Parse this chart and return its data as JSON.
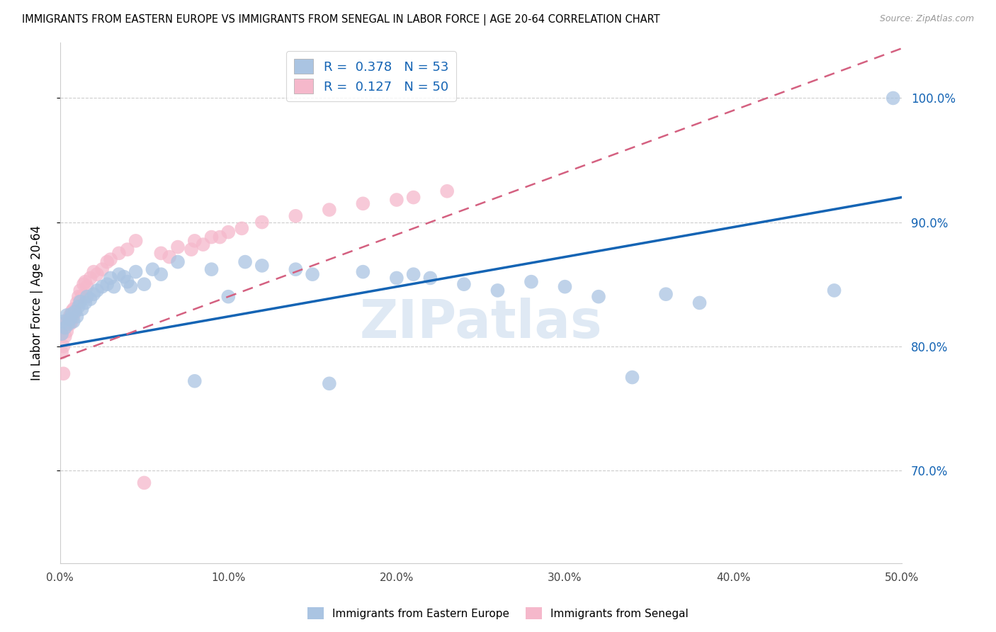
{
  "title": "IMMIGRANTS FROM EASTERN EUROPE VS IMMIGRANTS FROM SENEGAL IN LABOR FORCE | AGE 20-64 CORRELATION CHART",
  "source": "Source: ZipAtlas.com",
  "ylabel": "In Labor Force | Age 20-64",
  "legend_labels": [
    "Immigrants from Eastern Europe",
    "Immigrants from Senegal"
  ],
  "R_eastern": 0.378,
  "N_eastern": 53,
  "R_senegal": 0.127,
  "N_senegal": 50,
  "color_eastern": "#aac4e2",
  "color_senegal": "#f5b8cb",
  "line_color_eastern": "#1464b4",
  "line_color_senegal": "#d46080",
  "xlim": [
    0.0,
    0.5
  ],
  "ylim": [
    0.625,
    1.045
  ],
  "yticks": [
    0.7,
    0.8,
    0.9,
    1.0
  ],
  "xticks": [
    0.0,
    0.1,
    0.2,
    0.3,
    0.4,
    0.5
  ],
  "watermark": "ZIPatlas",
  "eastern_x": [
    0.001,
    0.002,
    0.003,
    0.004,
    0.005,
    0.006,
    0.007,
    0.008,
    0.009,
    0.01,
    0.011,
    0.012,
    0.013,
    0.015,
    0.016,
    0.018,
    0.02,
    0.022,
    0.025,
    0.028,
    0.03,
    0.032,
    0.035,
    0.038,
    0.04,
    0.042,
    0.045,
    0.05,
    0.055,
    0.06,
    0.07,
    0.08,
    0.09,
    0.1,
    0.11,
    0.12,
    0.14,
    0.15,
    0.16,
    0.18,
    0.2,
    0.21,
    0.22,
    0.24,
    0.26,
    0.28,
    0.3,
    0.32,
    0.34,
    0.36,
    0.38,
    0.46,
    0.495
  ],
  "eastern_y": [
    0.81,
    0.82,
    0.815,
    0.825,
    0.818,
    0.822,
    0.826,
    0.82,
    0.828,
    0.824,
    0.832,
    0.836,
    0.83,
    0.835,
    0.84,
    0.838,
    0.842,
    0.845,
    0.848,
    0.85,
    0.855,
    0.848,
    0.858,
    0.856,
    0.852,
    0.848,
    0.86,
    0.85,
    0.862,
    0.858,
    0.868,
    0.772,
    0.862,
    0.84,
    0.868,
    0.865,
    0.862,
    0.858,
    0.77,
    0.86,
    0.855,
    0.858,
    0.855,
    0.85,
    0.845,
    0.852,
    0.848,
    0.84,
    0.775,
    0.842,
    0.835,
    0.845,
    1.0
  ],
  "senegal_x": [
    0.001,
    0.001,
    0.002,
    0.002,
    0.003,
    0.003,
    0.004,
    0.004,
    0.005,
    0.006,
    0.006,
    0.007,
    0.007,
    0.008,
    0.008,
    0.009,
    0.01,
    0.011,
    0.012,
    0.013,
    0.014,
    0.015,
    0.016,
    0.018,
    0.02,
    0.022,
    0.025,
    0.028,
    0.03,
    0.035,
    0.04,
    0.045,
    0.05,
    0.06,
    0.07,
    0.08,
    0.09,
    0.1,
    0.12,
    0.14,
    0.16,
    0.18,
    0.2,
    0.21,
    0.23,
    0.108,
    0.095,
    0.085,
    0.078,
    0.065
  ],
  "senegal_y": [
    0.795,
    0.81,
    0.778,
    0.8,
    0.815,
    0.808,
    0.812,
    0.82,
    0.822,
    0.818,
    0.825,
    0.828,
    0.82,
    0.825,
    0.83,
    0.828,
    0.835,
    0.84,
    0.845,
    0.84,
    0.85,
    0.852,
    0.848,
    0.855,
    0.86,
    0.858,
    0.862,
    0.868,
    0.87,
    0.875,
    0.878,
    0.885,
    0.69,
    0.875,
    0.88,
    0.885,
    0.888,
    0.892,
    0.9,
    0.905,
    0.91,
    0.915,
    0.918,
    0.92,
    0.925,
    0.895,
    0.888,
    0.882,
    0.878,
    0.872
  ],
  "line_eastern_x0": 0.0,
  "line_eastern_x1": 0.5,
  "line_eastern_y0": 0.8,
  "line_eastern_y1": 0.92,
  "line_senegal_x0": 0.0,
  "line_senegal_x1": 0.5,
  "line_senegal_y0": 0.79,
  "line_senegal_y1": 1.04
}
